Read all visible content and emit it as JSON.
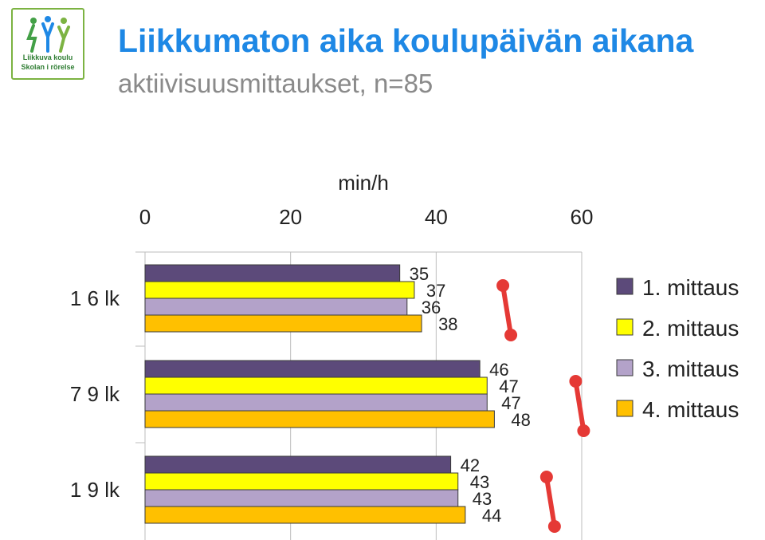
{
  "title": "Liikkumaton aika koulupäivän aikana",
  "subtitle": "aktiivisuusmittaukset, n=85",
  "logo": {
    "line1": "Liikkuva koulu",
    "line2": "Skolan i rörelse"
  },
  "chart_data": {
    "type": "bar",
    "orientation": "horizontal",
    "xlabel": "min/h",
    "xlim": [
      0,
      60
    ],
    "xticks": [
      0,
      20,
      40,
      60
    ],
    "categories": [
      "1 6 lk",
      "7 9 lk",
      "1 9 lk"
    ],
    "series": [
      {
        "name": "1. mittaus",
        "color": "#5c4a7a",
        "values": [
          35,
          46,
          42
        ]
      },
      {
        "name": "2. mittaus",
        "color": "#ffff00",
        "values": [
          37,
          47,
          43
        ]
      },
      {
        "name": "3. mittaus",
        "color": "#b3a2c9",
        "values": [
          36,
          47,
          43
        ]
      },
      {
        "name": "4. mittaus",
        "color": "#ffc000",
        "values": [
          38,
          48,
          44
        ]
      }
    ],
    "annotation_color": "#e53935",
    "legend_position": "right",
    "grid": "vertical"
  }
}
